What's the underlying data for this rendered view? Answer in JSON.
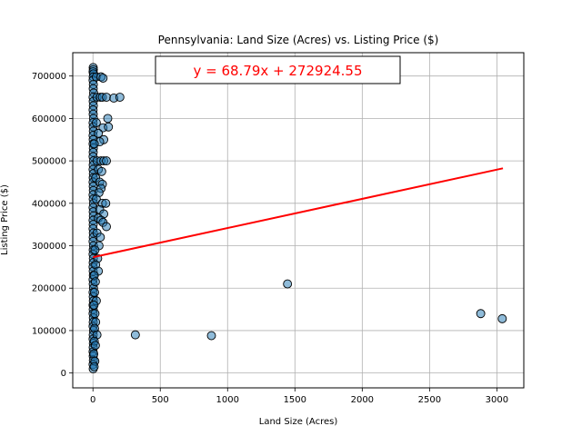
{
  "chart_data": {
    "type": "scatter",
    "title": "Pennsylvania: Land Size (Acres) vs. Listing Price ($)",
    "xlabel": "Land Size (Acres)",
    "ylabel": "Listing Price ($)",
    "xlim": [
      -150,
      3200
    ],
    "ylim": [
      -35000,
      755000
    ],
    "xticks": [
      0,
      500,
      1000,
      1500,
      2000,
      2500,
      3000
    ],
    "yticks": [
      0,
      100000,
      200000,
      300000,
      400000,
      500000,
      600000,
      700000
    ],
    "grid": true,
    "point_color": "#1f77b4",
    "line_color": "#ff0000",
    "regression": {
      "slope": 68.79,
      "intercept": 272924.55,
      "x_range": [
        0,
        3045
      ]
    },
    "equation": "y = 68.79x + 272924.55",
    "points": [
      [
        2,
        720000
      ],
      [
        3,
        715000
      ],
      [
        1,
        710000
      ],
      [
        4,
        705000
      ],
      [
        2,
        698000
      ],
      [
        1,
        690000
      ],
      [
        3,
        680000
      ],
      [
        2,
        670000
      ],
      [
        5,
        660000
      ],
      [
        1,
        650000
      ],
      [
        2,
        640000
      ],
      [
        3,
        630000
      ],
      [
        1,
        620000
      ],
      [
        2,
        610000
      ],
      [
        4,
        600000
      ],
      [
        1,
        590000
      ],
      [
        2,
        580000
      ],
      [
        3,
        570000
      ],
      [
        1,
        560000
      ],
      [
        2,
        550000
      ],
      [
        1,
        540000
      ],
      [
        3,
        530000
      ],
      [
        2,
        520000
      ],
      [
        1,
        510000
      ],
      [
        4,
        500000
      ],
      [
        2,
        490000
      ],
      [
        1,
        480000
      ],
      [
        3,
        470000
      ],
      [
        2,
        460000
      ],
      [
        1,
        450000
      ],
      [
        2,
        440000
      ],
      [
        3,
        430000
      ],
      [
        1,
        420000
      ],
      [
        2,
        410000
      ],
      [
        4,
        400000
      ],
      [
        1,
        390000
      ],
      [
        2,
        380000
      ],
      [
        3,
        370000
      ],
      [
        1,
        360000
      ],
      [
        2,
        350000
      ],
      [
        1,
        340000
      ],
      [
        3,
        330000
      ],
      [
        2,
        320000
      ],
      [
        1,
        310000
      ],
      [
        4,
        300000
      ],
      [
        2,
        290000
      ],
      [
        1,
        280000
      ],
      [
        3,
        270000
      ],
      [
        2,
        260000
      ],
      [
        1,
        250000
      ],
      [
        2,
        240000
      ],
      [
        3,
        230000
      ],
      [
        1,
        220000
      ],
      [
        2,
        210000
      ],
      [
        4,
        200000
      ],
      [
        1,
        190000
      ],
      [
        2,
        180000
      ],
      [
        3,
        170000
      ],
      [
        1,
        160000
      ],
      [
        2,
        150000
      ],
      [
        1,
        140000
      ],
      [
        3,
        130000
      ],
      [
        2,
        120000
      ],
      [
        1,
        110000
      ],
      [
        4,
        100000
      ],
      [
        2,
        90000
      ],
      [
        1,
        80000
      ],
      [
        3,
        70000
      ],
      [
        2,
        60000
      ],
      [
        1,
        50000
      ],
      [
        2,
        40000
      ],
      [
        3,
        30000
      ],
      [
        1,
        20000
      ],
      [
        2,
        10000
      ],
      [
        25,
        698000
      ],
      [
        60,
        698000
      ],
      [
        75,
        695000
      ],
      [
        30,
        650000
      ],
      [
        55,
        650000
      ],
      [
        70,
        650000
      ],
      [
        100,
        650000
      ],
      [
        155,
        648000
      ],
      [
        200,
        650000
      ],
      [
        110,
        600000
      ],
      [
        25,
        590000
      ],
      [
        75,
        578000
      ],
      [
        115,
        580000
      ],
      [
        40,
        565000
      ],
      [
        80,
        550000
      ],
      [
        50,
        545000
      ],
      [
        10,
        540000
      ],
      [
        30,
        500000
      ],
      [
        60,
        500000
      ],
      [
        80,
        500000
      ],
      [
        100,
        500000
      ],
      [
        40,
        480000
      ],
      [
        65,
        475000
      ],
      [
        20,
        460000
      ],
      [
        50,
        450000
      ],
      [
        70,
        445000
      ],
      [
        60,
        435000
      ],
      [
        45,
        425000
      ],
      [
        25,
        410000
      ],
      [
        70,
        400000
      ],
      [
        95,
        400000
      ],
      [
        50,
        385000
      ],
      [
        80,
        375000
      ],
      [
        40,
        365000
      ],
      [
        60,
        360000
      ],
      [
        75,
        355000
      ],
      [
        100,
        345000
      ],
      [
        30,
        330000
      ],
      [
        55,
        320000
      ],
      [
        45,
        300000
      ],
      [
        15,
        290000
      ],
      [
        35,
        270000
      ],
      [
        20,
        255000
      ],
      [
        40,
        240000
      ],
      [
        10,
        230000
      ],
      [
        18,
        215000
      ],
      [
        12,
        190000
      ],
      [
        25,
        170000
      ],
      [
        8,
        160000
      ],
      [
        15,
        140000
      ],
      [
        20,
        120000
      ],
      [
        12,
        105000
      ],
      [
        30,
        90000
      ],
      [
        10,
        75000
      ],
      [
        18,
        65000
      ],
      [
        6,
        45000
      ],
      [
        14,
        28000
      ],
      [
        9,
        15000
      ],
      [
        315,
        90000
      ],
      [
        880,
        88000
      ],
      [
        1445,
        210000
      ],
      [
        2880,
        140000
      ],
      [
        3040,
        128000
      ]
    ]
  }
}
